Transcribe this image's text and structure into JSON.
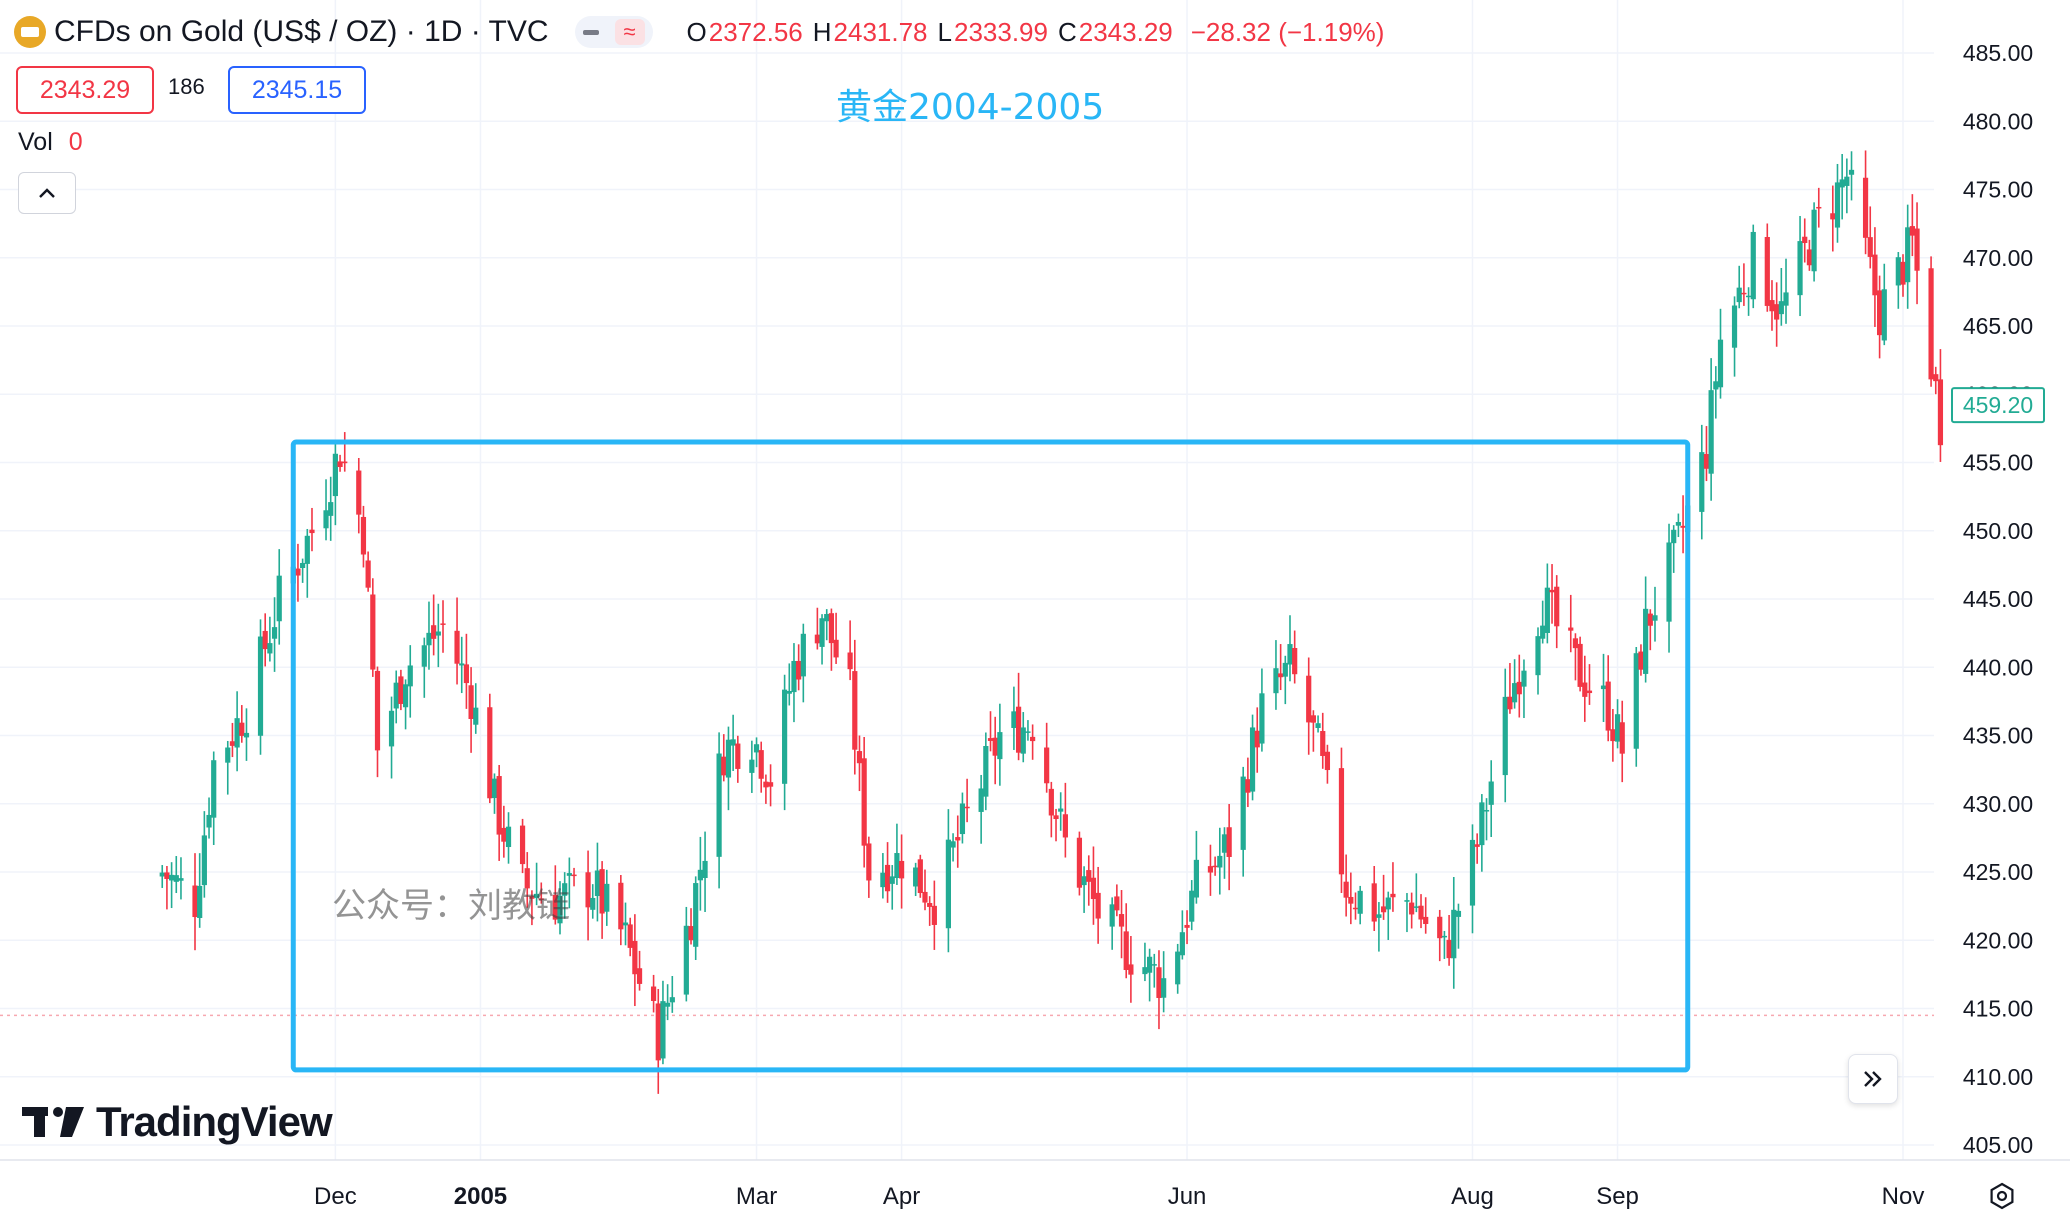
{
  "header": {
    "symbol_title": "CFDs on Gold (US$ / OZ) · 1D · TVC",
    "ohlc": [
      {
        "key": "O",
        "value": "2372.56"
      },
      {
        "key": "H",
        "value": "2431.78"
      },
      {
        "key": "L",
        "value": "2333.99"
      },
      {
        "key": "C",
        "value": "2343.29"
      }
    ],
    "change": "−28.32 (−1.19%)",
    "bid": "2343.29",
    "spread": "186",
    "ask": "2345.15",
    "volume_label": "Vol",
    "volume_value": "0",
    "collapse_icon": "chevron-up-icon",
    "series_icon": "gold-coin-icon"
  },
  "annotation": "黄金2004-2005",
  "watermark": "公众号：刘教链",
  "brand": "TradingView",
  "colors": {
    "up": "#22ab94",
    "down": "#f23645",
    "box": "#29b6f6",
    "last_price": "#22ab94"
  },
  "last_price_label": "459.20",
  "chart_data": {
    "type": "candlestick",
    "title": "",
    "xlabel": "",
    "ylabel": "",
    "ylim": [
      405,
      485
    ],
    "y_ticks": [
      "485.00",
      "480.00",
      "475.00",
      "470.00",
      "465.00",
      "460.00",
      "455.00",
      "450.00",
      "445.00",
      "440.00",
      "435.00",
      "430.00",
      "425.00",
      "420.00",
      "415.00",
      "410.00",
      "405.00"
    ],
    "x_ticks": [
      {
        "label": "Dec",
        "bold": false
      },
      {
        "label": "2005",
        "bold": true
      },
      {
        "label": "Mar",
        "bold": false
      },
      {
        "label": "Apr",
        "bold": false
      },
      {
        "label": "Jun",
        "bold": false
      },
      {
        "label": "Aug",
        "bold": false
      },
      {
        "label": "Sep",
        "bold": false
      },
      {
        "label": "Nov",
        "bold": false
      }
    ],
    "grid": true,
    "highlight_box": {
      "from_date": "2004-11-22",
      "to_date": "2005-09-16",
      "price_low": 410.5,
      "price_high": 456.5
    },
    "last_price": 459.2,
    "candles": []
  }
}
